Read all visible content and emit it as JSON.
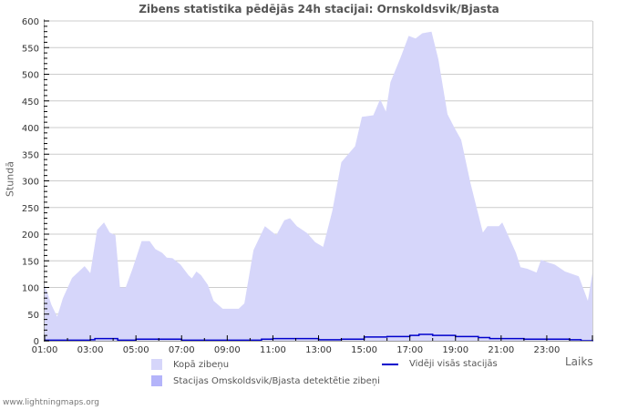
{
  "chart_data": {
    "type": "area",
    "title": "Zibens statistika pēdējās 24h stacijai: Ornskoldsvik/Bjasta",
    "xlabel": "Laiks",
    "ylabel": "Stundā",
    "ylim": [
      0,
      600
    ],
    "yticks": [
      0,
      50,
      100,
      150,
      200,
      250,
      300,
      350,
      400,
      450,
      500,
      550,
      600
    ],
    "xticks": [
      "01:00",
      "03:00",
      "05:00",
      "07:00",
      "09:00",
      "11:00",
      "13:00",
      "15:00",
      "17:00",
      "19:00",
      "21:00",
      "23:00"
    ],
    "x_hours_range": [
      1,
      25
    ],
    "grid": true,
    "legend_position": "bottom",
    "series": [
      {
        "name": "Kopā zibeņu",
        "type": "area",
        "color": "#d6d6fa",
        "x": [
          1.0,
          1.3,
          1.55,
          1.8,
          2.2,
          2.75,
          3.0,
          3.3,
          3.6,
          3.85,
          4.1,
          4.3,
          4.55,
          4.85,
          5.25,
          5.6,
          5.85,
          6.15,
          6.35,
          6.6,
          6.95,
          7.3,
          7.45,
          7.65,
          7.85,
          8.15,
          8.4,
          8.8,
          9.5,
          9.75,
          10.15,
          10.65,
          11.15,
          11.5,
          11.75,
          12.05,
          12.5,
          12.85,
          13.2,
          13.6,
          14.0,
          14.6,
          14.9,
          15.4,
          15.7,
          15.95,
          16.15,
          16.6,
          16.95,
          17.25,
          17.55,
          17.95,
          18.25,
          18.65,
          18.95,
          19.25,
          19.65,
          20.2,
          20.4,
          20.9,
          21.05,
          21.65,
          21.85,
          22.15,
          22.55,
          22.75,
          23.05,
          23.35,
          23.8,
          24.4,
          24.8,
          25.0
        ],
        "values": [
          105,
          67,
          45,
          80,
          118,
          140,
          127,
          208,
          222,
          203,
          198,
          100,
          100,
          135,
          187,
          187,
          172,
          165,
          156,
          155,
          143,
          123,
          117,
          130,
          123,
          105,
          75,
          60,
          60,
          70,
          170,
          215,
          198,
          226,
          230,
          215,
          202,
          185,
          176,
          243,
          335,
          365,
          420,
          423,
          453,
          430,
          485,
          532,
          572,
          567,
          577,
          580,
          528,
          425,
          400,
          377,
          297,
          203,
          215,
          215,
          222,
          165,
          138,
          135,
          128,
          152,
          147,
          143,
          130,
          121,
          75,
          127
        ]
      },
      {
        "name": "Stacijas Omskoldsvik/Bjasta detektētie zibeņi",
        "type": "area",
        "color": "#b4b4fa",
        "values": []
      },
      {
        "name": "Vidēji visās stacijās",
        "type": "line",
        "color": "#0000cc",
        "x": [
          1.0,
          2.0,
          3.0,
          3.2,
          4.0,
          4.2,
          5.0,
          6.0,
          7.0,
          9.0,
          10.5,
          11.0,
          13.0,
          14.0,
          15.0,
          16.0,
          17.0,
          17.4,
          18.0,
          19.0,
          20.0,
          20.5,
          21.0,
          22.0,
          24.0,
          24.5,
          25.0
        ],
        "values": [
          1,
          1,
          2,
          4,
          4,
          1,
          3,
          3,
          1,
          1,
          3,
          4,
          2,
          3,
          7,
          8,
          10,
          12,
          10,
          8,
          6,
          4,
          4,
          3,
          2,
          0,
          2
        ]
      }
    ]
  },
  "header": {
    "title": "Zibens statistika pēdējās 24h stacijai: Ornskoldsvik/Bjasta"
  },
  "axes": {
    "y_label": "Stundā",
    "x_label": "Laiks"
  },
  "legend": {
    "items": [
      {
        "label": "Kopā zibeņu",
        "color": "#d6d6fa",
        "kind": "area"
      },
      {
        "label": "Stacijas Omskoldsvik/Bjasta detektētie zibeņi",
        "color": "#b4b4fa",
        "kind": "area"
      },
      {
        "label": "Vidēji visās stacijās",
        "color": "#0000cc",
        "kind": "line"
      }
    ]
  },
  "footer": {
    "credit": "www.lightningmaps.org"
  }
}
